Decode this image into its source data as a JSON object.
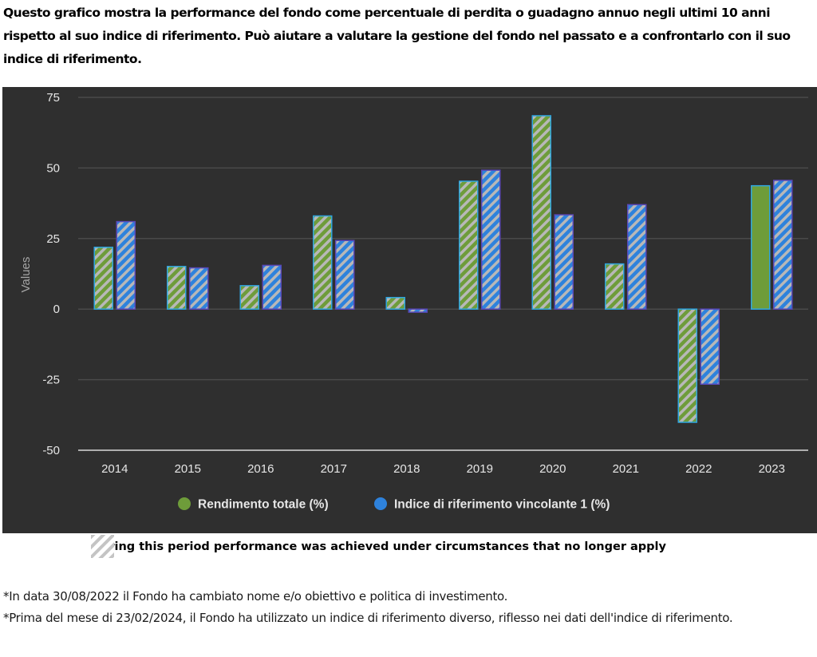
{
  "intro_text": "Questo grafico mostra la performance del fondo come percentuale di perdita o guadagno annuo negli ultimi 10 anni rispetto al suo indice di riferimento. Può aiutare a valutare la gestione del fondo nel passato e a confrontarlo con il suo indice di riferimento.",
  "colors": {
    "background": "#2f2f2f",
    "gridline": "#4a4a4a",
    "axis_line": "#d9d9d9",
    "tick_text": "#e6e6e6",
    "axis_title": "#a6a6a6",
    "series_green": "#6e9c3a",
    "series_green_border": "#2fa6e0",
    "series_blue": "#2e82dc",
    "series_blue_border": "#5a48b8",
    "hatch_stripe": "#b8b8b8"
  },
  "chart_data": {
    "type": "bar",
    "title": "",
    "xlabel": "",
    "ylabel": "Values",
    "ylim": [
      -50,
      75
    ],
    "yticks": [
      75,
      50,
      25,
      0,
      -25,
      -50
    ],
    "grid": true,
    "legend_position": "bottom-center",
    "categories": [
      "2014",
      "2015",
      "2016",
      "2017",
      "2018",
      "2019",
      "2020",
      "2021",
      "2022",
      "2023"
    ],
    "series": [
      {
        "name": "Rendimento totale (%)",
        "color": "#6e9c3a",
        "values": [
          21.9,
          15.1,
          8.3,
          33.0,
          4.1,
          45.3,
          68.5,
          16.0,
          -40.1,
          43.7
        ],
        "hatched": [
          true,
          true,
          true,
          true,
          true,
          true,
          true,
          true,
          true,
          false
        ]
      },
      {
        "name": "Indice di riferimento vincolante 1 (%)",
        "color": "#2e82dc",
        "values": [
          31.0,
          14.6,
          15.5,
          24.3,
          -1.1,
          49.2,
          33.4,
          37.0,
          -26.6,
          45.6
        ],
        "hatched": [
          true,
          true,
          true,
          true,
          true,
          true,
          true,
          true,
          true,
          true
        ]
      }
    ]
  },
  "hatch_note": "During this period performance was achieved under circumstances that no longer apply",
  "footnotes": [
    "*In data 30/08/2022 il Fondo ha cambiato nome e/o obiettivo e politica di investimento.",
    "*Prima del mese di 23/02/2024, il Fondo ha utilizzato un indice di riferimento diverso, riflesso nei dati dell'indice di riferimento."
  ]
}
